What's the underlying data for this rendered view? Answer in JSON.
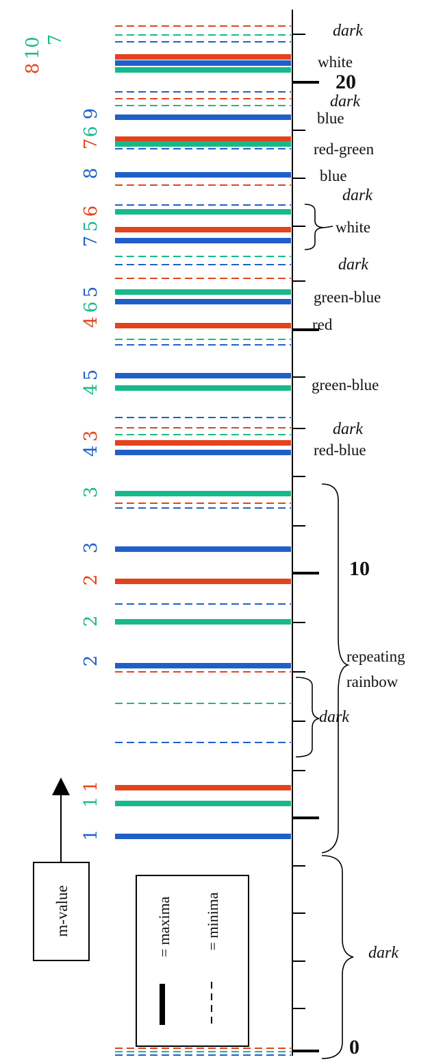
{
  "colors": {
    "red": "#e2431c",
    "blue": "#1f5fc8",
    "green": "#17b98b",
    "axis": "#000000"
  },
  "axis": {
    "ticks_major": [
      "0",
      "10",
      "20"
    ]
  },
  "lines": [
    {
      "c": "red",
      "t": "min"
    },
    {
      "c": "green",
      "t": "min"
    },
    {
      "c": "blue",
      "t": "min"
    },
    {
      "c": "red",
      "t": "max"
    },
    {
      "c": "blue",
      "t": "max"
    },
    {
      "c": "green",
      "t": "max"
    },
    {
      "c": "blue",
      "t": "min"
    },
    {
      "c": "red",
      "t": "min"
    },
    {
      "c": "green",
      "t": "min"
    },
    {
      "c": "blue",
      "t": "max"
    },
    {
      "c": "red",
      "t": "max"
    },
    {
      "c": "green",
      "t": "max"
    },
    {
      "c": "blue",
      "t": "min"
    },
    {
      "c": "blue",
      "t": "max"
    },
    {
      "c": "red",
      "t": "min"
    },
    {
      "c": "blue",
      "t": "min"
    },
    {
      "c": "green",
      "t": "max"
    },
    {
      "c": "red",
      "t": "max"
    },
    {
      "c": "blue",
      "t": "max"
    },
    {
      "c": "green",
      "t": "min"
    },
    {
      "c": "blue",
      "t": "min"
    },
    {
      "c": "red",
      "t": "min"
    },
    {
      "c": "green",
      "t": "max"
    },
    {
      "c": "blue",
      "t": "max"
    },
    {
      "c": "red",
      "t": "max"
    },
    {
      "c": "green",
      "t": "min"
    },
    {
      "c": "blue",
      "t": "min"
    },
    {
      "c": "blue",
      "t": "max"
    },
    {
      "c": "green",
      "t": "max"
    },
    {
      "c": "blue",
      "t": "min"
    },
    {
      "c": "red",
      "t": "min"
    },
    {
      "c": "green",
      "t": "min"
    },
    {
      "c": "red",
      "t": "max"
    },
    {
      "c": "blue",
      "t": "max"
    },
    {
      "c": "green",
      "t": "max"
    },
    {
      "c": "red",
      "t": "min"
    },
    {
      "c": "blue",
      "t": "min"
    },
    {
      "c": "blue",
      "t": "max"
    },
    {
      "c": "red",
      "t": "max"
    },
    {
      "c": "blue",
      "t": "min"
    },
    {
      "c": "green",
      "t": "max"
    },
    {
      "c": "blue",
      "t": "max"
    },
    {
      "c": "red",
      "t": "min"
    },
    {
      "c": "green",
      "t": "min"
    },
    {
      "c": "blue",
      "t": "min"
    },
    {
      "c": "red",
      "t": "max"
    },
    {
      "c": "green",
      "t": "max"
    },
    {
      "c": "blue",
      "t": "max"
    },
    {
      "c": "red",
      "t": "min"
    },
    {
      "c": "green",
      "t": "min"
    },
    {
      "c": "blue",
      "t": "min"
    }
  ],
  "mvalues": [
    {
      "text": "10",
      "c": "green"
    },
    {
      "text": "8",
      "c": "red"
    },
    {
      "text": "7",
      "c": "green"
    },
    {
      "text": "9",
      "c": "blue"
    },
    {
      "text": "6",
      "c": "green"
    },
    {
      "text": "7",
      "c": "red"
    },
    {
      "text": "8",
      "c": "blue"
    },
    {
      "text": "6",
      "c": "red"
    },
    {
      "text": "5",
      "c": "green"
    },
    {
      "text": "7",
      "c": "blue"
    },
    {
      "text": "5",
      "c": "blue"
    },
    {
      "text": "6",
      "c": "green"
    },
    {
      "text": "4",
      "c": "red"
    },
    {
      "text": "5",
      "c": "blue"
    },
    {
      "text": "4",
      "c": "green"
    },
    {
      "text": "3",
      "c": "red"
    },
    {
      "text": "4",
      "c": "blue"
    },
    {
      "text": "3",
      "c": "green"
    },
    {
      "text": "3",
      "c": "blue"
    },
    {
      "text": "2",
      "c": "red"
    },
    {
      "text": "2",
      "c": "green"
    },
    {
      "text": "2",
      "c": "blue"
    },
    {
      "text": "1",
      "c": "red"
    },
    {
      "text": "1",
      "c": "green"
    },
    {
      "text": "1",
      "c": "blue"
    }
  ],
  "labels": {
    "dark": "dark",
    "white": "white",
    "blue": "blue",
    "red_green": "red-green",
    "green_blue": "green-blue",
    "red": "red",
    "red_blue": "red-blue",
    "repeating": "repeating",
    "rainbow": "rainbow",
    "mvalue": "m-value",
    "legend_max": "= maxima",
    "legend_min": "= minima"
  }
}
